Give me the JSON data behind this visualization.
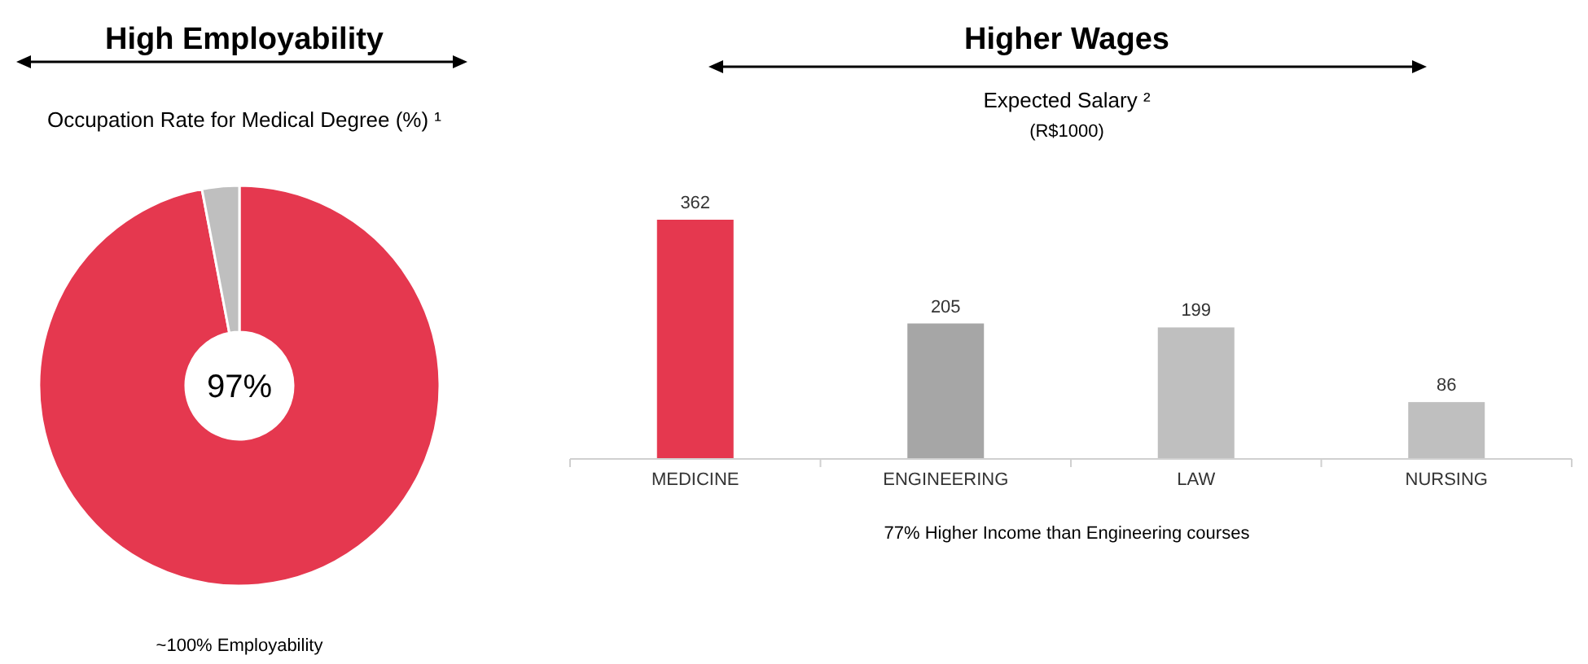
{
  "chart_data": [
    {
      "type": "donut",
      "title": "High Employability",
      "subtitle": "Occupation Rate for Medical Degree (%) ¹",
      "categories": [
        null,
        null
      ],
      "values": [
        97,
        3
      ],
      "colors": [
        "#e5384f",
        "#bfbfbf"
      ],
      "value_labels": [
        "97%",
        null
      ],
      "annotations": [
        "~100% Employability"
      ]
    },
    {
      "type": "bar",
      "title": "Higher Wages",
      "subtitle": "Expected Salary ²",
      "ylabel": "(R$1000)",
      "categories": [
        "MEDICINE",
        "ENGINEERING",
        "LAW",
        "NURSING"
      ],
      "values": [
        362,
        205,
        199,
        86
      ],
      "colors": [
        "#e5384f",
        "#a6a6a6",
        "#bfbfbf",
        "#bfbfbf"
      ],
      "data_labels": true,
      "annotations": [
        "77% Higher Income than Engineering courses"
      ]
    }
  ]
}
